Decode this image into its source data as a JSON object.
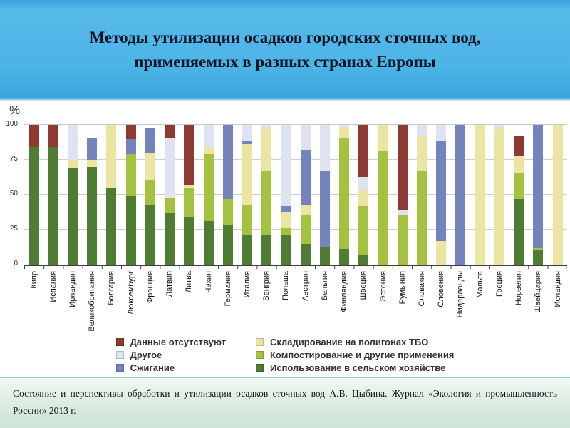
{
  "header": {
    "title_lines": [
      "Методы утилизации осадков городских сточных вод,",
      "применяемых в разных странах Европы"
    ]
  },
  "chart_data": {
    "type": "bar",
    "stacked": true,
    "unit_label": "%",
    "ylim": [
      0,
      100
    ],
    "yticks": [
      100,
      75,
      50,
      25,
      0
    ],
    "grid": true,
    "legend_position": "bottom",
    "categories": [
      "Кипр",
      "Испания",
      "Ирландия",
      "Великобритания",
      "Болгария",
      "Люксембург",
      "Франция",
      "Латвия",
      "Литва",
      "Чехия",
      "Германия",
      "Италия",
      "Венгрия",
      "Польша",
      "Австрия",
      "Бельгия",
      "Финляндия",
      "Швеция",
      "Эстония",
      "Румыния",
      "Словакия",
      "Словения",
      "Нидерланды",
      "Мальта",
      "Греция",
      "Норвегия",
      "Швейцария",
      "Исландия"
    ],
    "series": [
      {
        "key": "agriculture",
        "name": "Использование в сельском хозяйстве",
        "color": "#4e7c33",
        "values": [
          84,
          84,
          69,
          70,
          55,
          49,
          43,
          37,
          34,
          31,
          28,
          21,
          21,
          21,
          15,
          13,
          11,
          7,
          0,
          0,
          0,
          0,
          0,
          0,
          0,
          47,
          10,
          0
        ]
      },
      {
        "key": "compost",
        "name": "Компостирование и другие применения",
        "color": "#a4c13f",
        "values": [
          0,
          0,
          0,
          0,
          0,
          30,
          17,
          11,
          21,
          48,
          19,
          22,
          46,
          5,
          20,
          0,
          80,
          35,
          81,
          35,
          67,
          0,
          0,
          0,
          0,
          19,
          2,
          0
        ]
      },
      {
        "key": "landfill",
        "name": "Складирование на полигонах ТБО",
        "color": "#eae5a0",
        "values": [
          0,
          0,
          6,
          5,
          45,
          0,
          20,
          0,
          2,
          5,
          0,
          43,
          30,
          12,
          8,
          0,
          7,
          11,
          19,
          0,
          25,
          17,
          0,
          100,
          97,
          12,
          0,
          100
        ]
      },
      {
        "key": "incineration",
        "name": "Сжигание",
        "color": "#7482be",
        "values": [
          0,
          0,
          0,
          16,
          0,
          11,
          18,
          0,
          0,
          0,
          53,
          3,
          0,
          4,
          39,
          54,
          0,
          0,
          0,
          0,
          0,
          72,
          100,
          0,
          0,
          0,
          88,
          0
        ]
      },
      {
        "key": "other",
        "name": "Другое",
        "color": "#dfe2f1",
        "values": [
          0,
          0,
          25,
          0,
          0,
          0,
          0,
          43,
          0,
          16,
          0,
          11,
          3,
          58,
          18,
          33,
          2,
          10,
          0,
          4,
          8,
          11,
          0,
          0,
          3,
          0,
          0,
          0
        ]
      },
      {
        "key": "no_data",
        "name": "Данные отсутствуют",
        "color": "#8e3a33",
        "values": [
          16,
          16,
          0,
          0,
          0,
          10,
          0,
          9,
          43,
          0,
          0,
          0,
          0,
          0,
          0,
          0,
          0,
          37,
          0,
          61,
          0,
          0,
          0,
          0,
          0,
          14,
          0,
          0
        ]
      }
    ],
    "legend_columns": {
      "left": [
        "no_data",
        "other",
        "incineration"
      ],
      "right": [
        "landfill",
        "compost",
        "agriculture"
      ]
    }
  },
  "footer": {
    "text": "Состояние и перспективы обработки и утилизации осадков сточных вод А.В. Цыбина. Журнал «Экология и промышленность России» 2013 г."
  },
  "colors": {
    "header_blue": "#4db4e6",
    "footer_green": "#d7eade",
    "separator_line": "#9bcfdb",
    "axis_line": "#404040",
    "gridline": "#cdcdcd"
  }
}
